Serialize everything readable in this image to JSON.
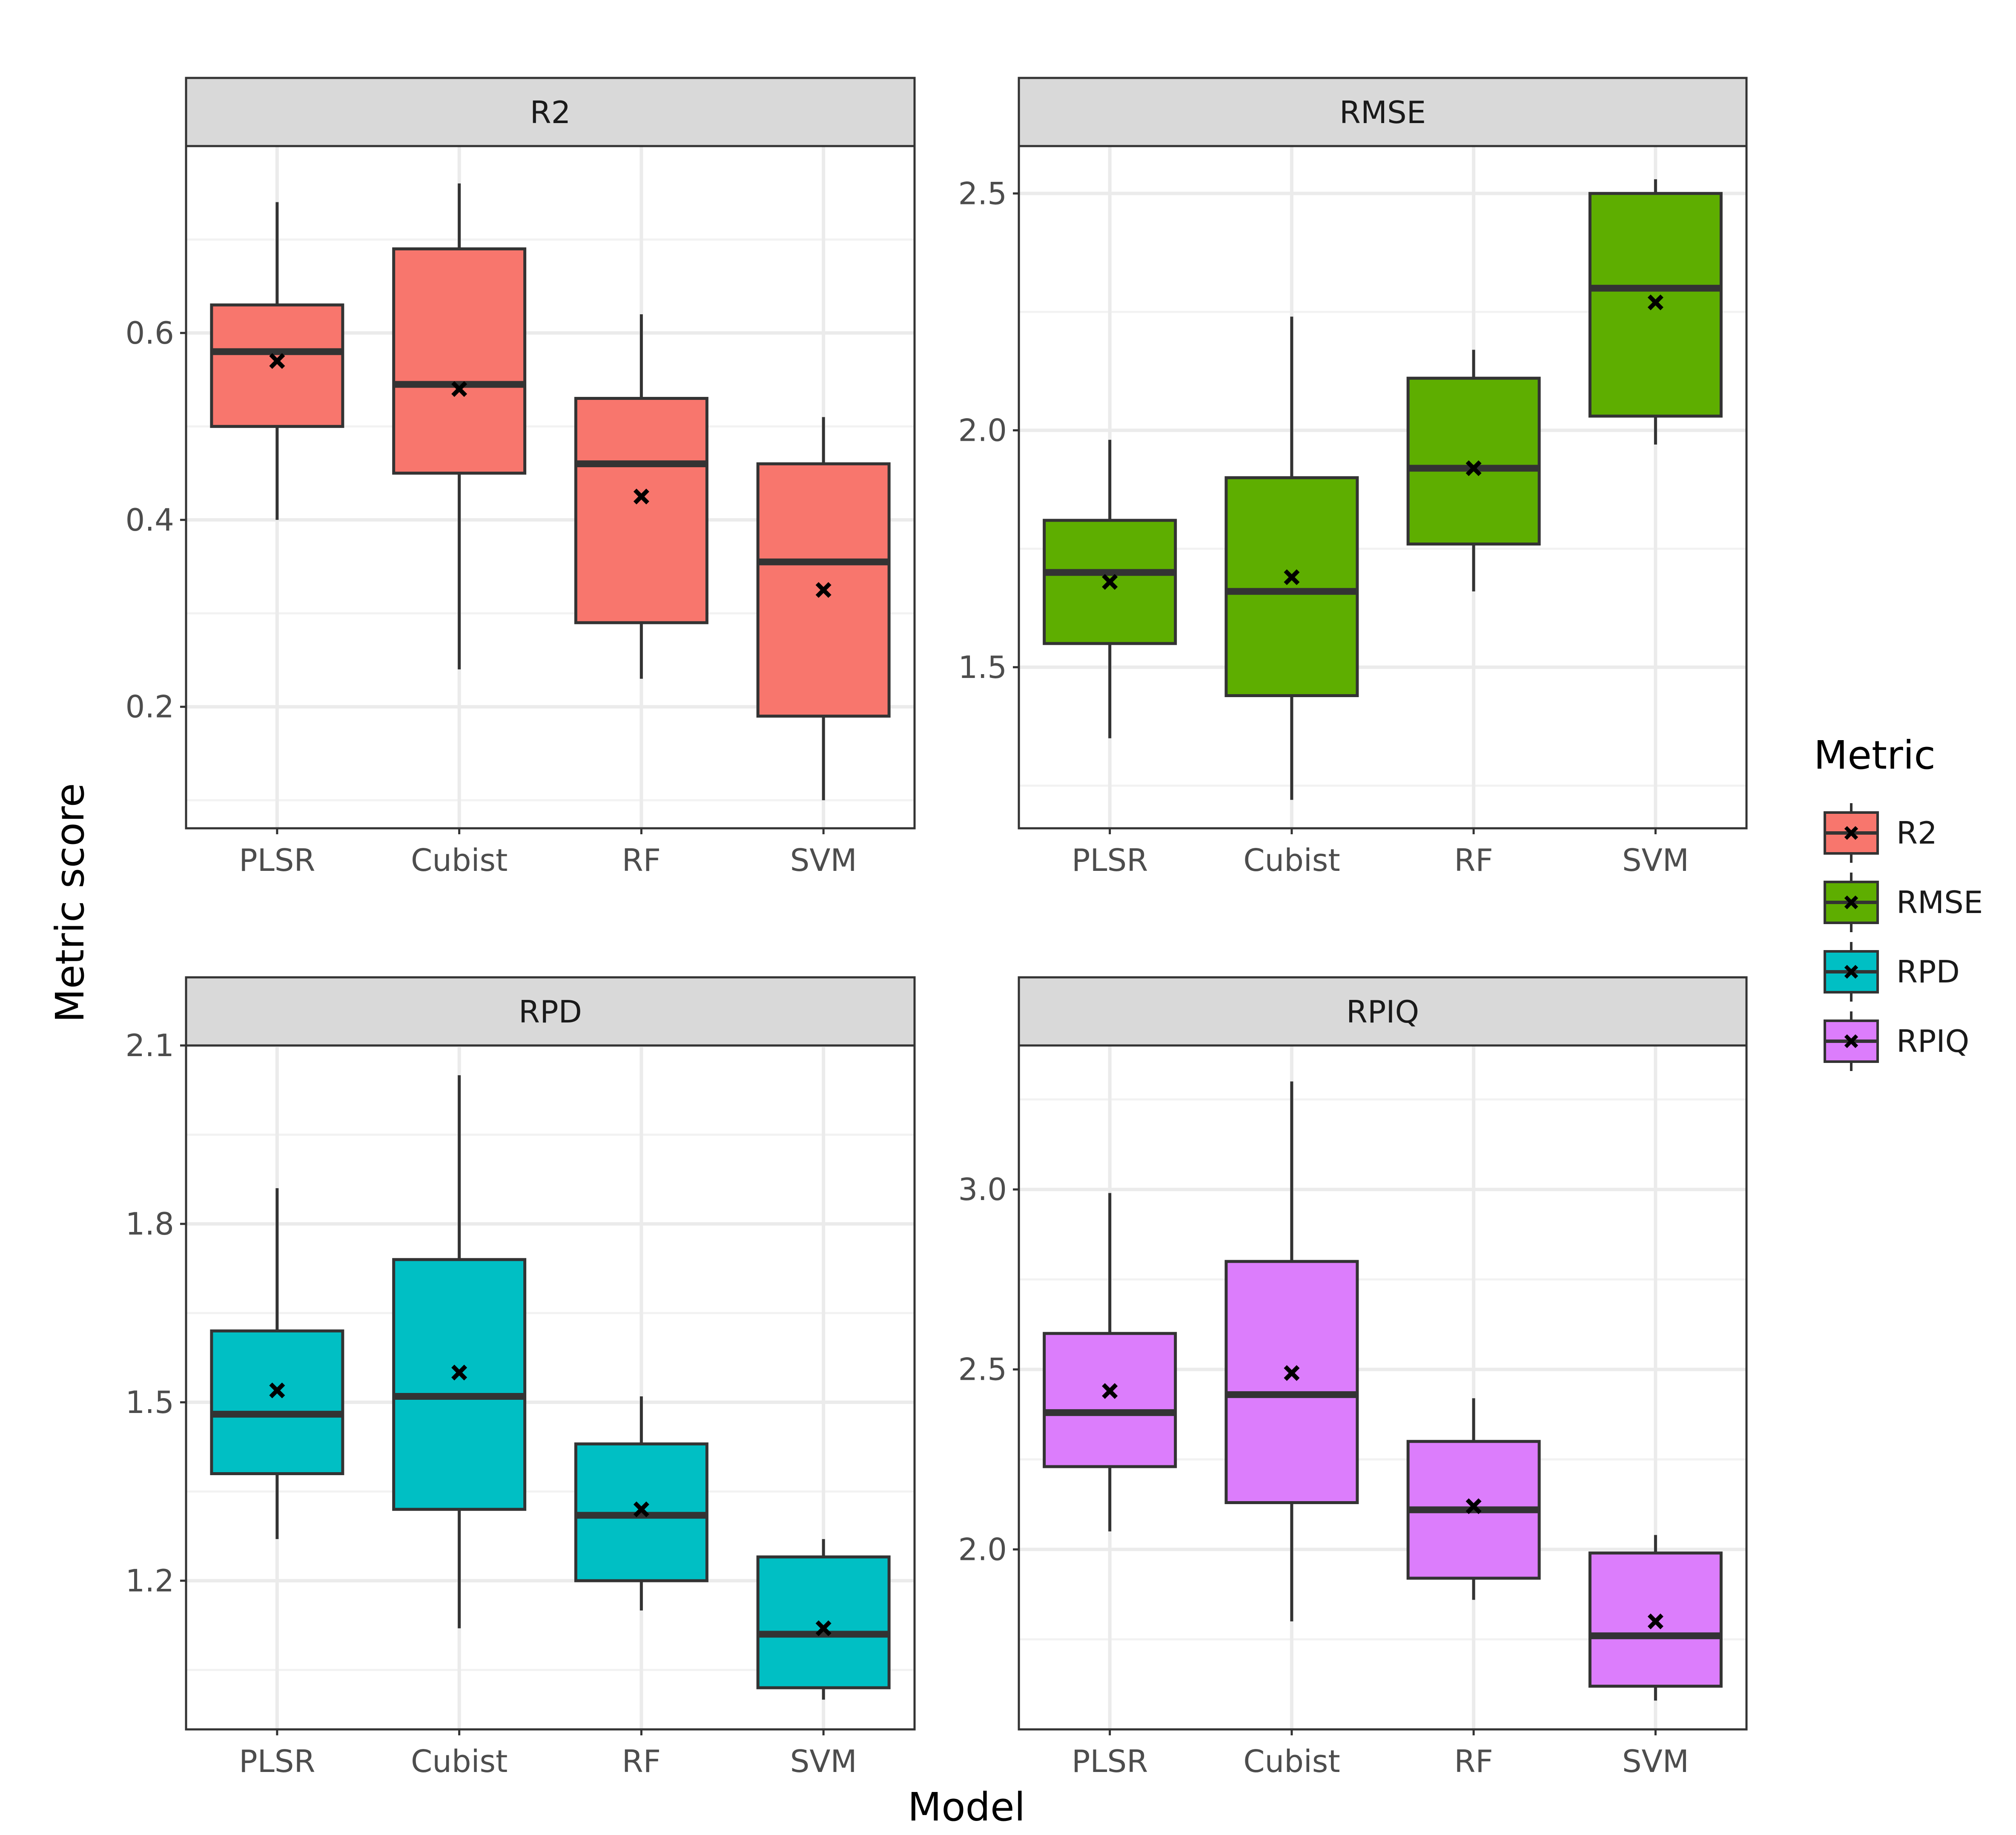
{
  "chart_data": {
    "type": "boxplot",
    "facet_layout": "2x2",
    "xlabel": "Model",
    "ylabel": "Metric score",
    "categories": [
      "PLSR",
      "Cubist",
      "RF",
      "SVM"
    ],
    "legend": {
      "title": "Metric",
      "position": "right",
      "entries": [
        "R2",
        "RMSE",
        "RPD",
        "RPIQ"
      ]
    },
    "colors": {
      "R2": "#F8766D",
      "RMSE": "#5EAE00",
      "RPD": "#00BFC4",
      "RPIQ": "#DC7DFC"
    },
    "grid": true,
    "mean_marker": "x",
    "panels": [
      {
        "name": "R2",
        "ylim": [
          0.07,
          0.8
        ],
        "yticks": [
          "0.2",
          "0.4",
          "0.6"
        ],
        "ytick_values": [
          0.2,
          0.4,
          0.6
        ],
        "boxes": [
          {
            "model": "PLSR",
            "min": 0.4,
            "q1": 0.5,
            "median": 0.58,
            "q3": 0.63,
            "max": 0.74,
            "mean": 0.57
          },
          {
            "model": "Cubist",
            "min": 0.24,
            "q1": 0.45,
            "median": 0.545,
            "q3": 0.69,
            "max": 0.76,
            "mean": 0.54
          },
          {
            "model": "RF",
            "min": 0.23,
            "q1": 0.29,
            "median": 0.46,
            "q3": 0.53,
            "max": 0.62,
            "mean": 0.425
          },
          {
            "model": "SVM",
            "min": 0.1,
            "q1": 0.19,
            "median": 0.355,
            "q3": 0.46,
            "max": 0.51,
            "mean": 0.325
          }
        ]
      },
      {
        "name": "RMSE",
        "ylim": [
          1.16,
          2.6
        ],
        "yticks": [
          "1.5",
          "2.0",
          "2.5"
        ],
        "ytick_values": [
          1.5,
          2.0,
          2.5
        ],
        "boxes": [
          {
            "model": "PLSR",
            "min": 1.35,
            "q1": 1.55,
            "median": 1.7,
            "q3": 1.81,
            "max": 1.98,
            "mean": 1.68
          },
          {
            "model": "Cubist",
            "min": 1.22,
            "q1": 1.44,
            "median": 1.66,
            "q3": 1.9,
            "max": 2.24,
            "mean": 1.69
          },
          {
            "model": "RF",
            "min": 1.66,
            "q1": 1.76,
            "median": 1.92,
            "q3": 2.11,
            "max": 2.17,
            "mean": 1.92
          },
          {
            "model": "SVM",
            "min": 1.97,
            "q1": 2.03,
            "median": 2.3,
            "q3": 2.5,
            "max": 2.53,
            "mean": 2.27
          }
        ]
      },
      {
        "name": "RPD",
        "ylim": [
          0.95,
          2.1
        ],
        "yticks": [
          "1.2",
          "1.5",
          "1.8",
          "2.1"
        ],
        "ytick_values": [
          1.2,
          1.5,
          1.8,
          2.1
        ],
        "boxes": [
          {
            "model": "PLSR",
            "min": 1.27,
            "q1": 1.38,
            "median": 1.48,
            "q3": 1.62,
            "max": 1.86,
            "mean": 1.52
          },
          {
            "model": "Cubist",
            "min": 1.12,
            "q1": 1.32,
            "median": 1.51,
            "q3": 1.74,
            "max": 2.05,
            "mean": 1.55
          },
          {
            "model": "RF",
            "min": 1.15,
            "q1": 1.2,
            "median": 1.31,
            "q3": 1.43,
            "max": 1.51,
            "mean": 1.32
          },
          {
            "model": "SVM",
            "min": 1.0,
            "q1": 1.02,
            "median": 1.11,
            "q3": 1.24,
            "max": 1.27,
            "mean": 1.12
          }
        ]
      },
      {
        "name": "RPIQ",
        "ylim": [
          1.5,
          3.4
        ],
        "yticks": [
          "2.0",
          "2.5",
          "3.0"
        ],
        "ytick_values": [
          2.0,
          2.5,
          3.0
        ],
        "boxes": [
          {
            "model": "PLSR",
            "min": 2.05,
            "q1": 2.23,
            "median": 2.38,
            "q3": 2.6,
            "max": 2.99,
            "mean": 2.44
          },
          {
            "model": "Cubist",
            "min": 1.8,
            "q1": 2.13,
            "median": 2.43,
            "q3": 2.8,
            "max": 3.3,
            "mean": 2.49
          },
          {
            "model": "RF",
            "min": 1.86,
            "q1": 1.92,
            "median": 2.11,
            "q3": 2.3,
            "max": 2.42,
            "mean": 2.12
          },
          {
            "model": "SVM",
            "min": 1.58,
            "q1": 1.62,
            "median": 1.76,
            "q3": 1.99,
            "max": 2.04,
            "mean": 1.8
          }
        ]
      }
    ]
  }
}
